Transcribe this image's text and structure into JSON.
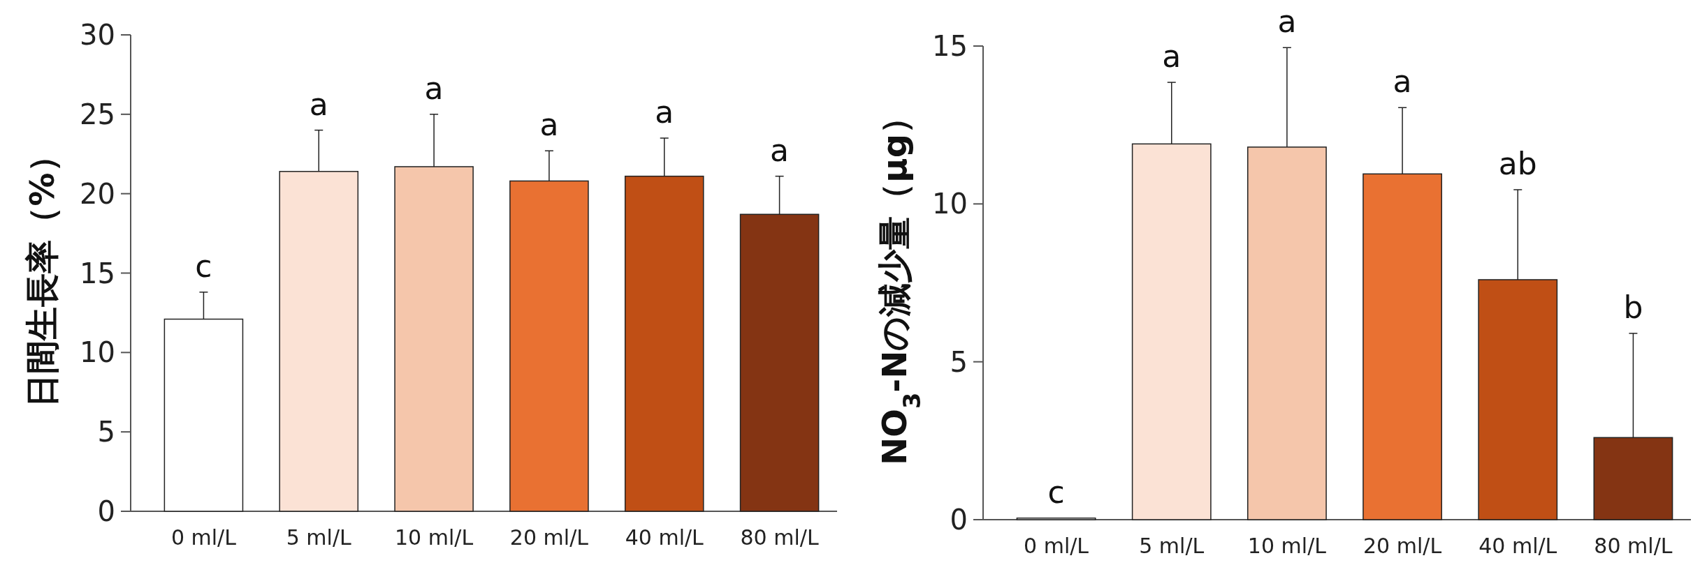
{
  "chart_data": [
    {
      "type": "bar",
      "ylabel": "日間生長率（%）",
      "categories": [
        "0 ml/L",
        "5 ml/L",
        "10 ml/L",
        "20 ml/L",
        "40 ml/L",
        "80 ml/L"
      ],
      "values": [
        12.1,
        21.4,
        21.7,
        20.8,
        21.1,
        18.7
      ],
      "errors": [
        [
          12.1,
          13.8
        ],
        [
          21.4,
          24.0
        ],
        [
          21.7,
          25.0
        ],
        [
          20.8,
          22.7
        ],
        [
          21.1,
          23.5
        ],
        [
          18.7,
          21.1
        ]
      ],
      "colors": [
        "#ffffff",
        "#fbe2d5",
        "#f5c6ab",
        "#e97132",
        "#c04f15",
        "#843413"
      ],
      "ylim": [
        0,
        30
      ],
      "yticks": [
        0,
        5,
        10,
        15,
        20,
        25,
        30
      ],
      "annotations": [
        {
          "text": "c",
          "x": "0 ml/L",
          "y": 13.8
        },
        {
          "text": "a",
          "x": "5 ml/L",
          "y": 24.0
        },
        {
          "text": "a",
          "x": "10 ml/L",
          "y": 25.0
        },
        {
          "text": "a",
          "x": "20 ml/L",
          "y": 22.7
        },
        {
          "text": "a",
          "x": "40 ml/L",
          "y": 23.5
        },
        {
          "text": "a",
          "x": "80 ml/L",
          "y": 21.1
        }
      ]
    },
    {
      "type": "bar",
      "ylabel": "NO$_{3}$-Nの減少量（μg）",
      "categories": [
        "0 ml/L",
        "5 ml/L",
        "10 ml/L",
        "20 ml/L",
        "40 ml/L",
        "80 ml/L"
      ],
      "values": [
        0.05,
        11.9,
        11.8,
        10.95,
        7.6,
        2.6
      ],
      "errors": [
        null,
        [
          11.9,
          13.85
        ],
        [
          11.8,
          14.95
        ],
        [
          10.95,
          13.05
        ],
        [
          7.6,
          10.45
        ],
        [
          2.6,
          5.9
        ]
      ],
      "colors": [
        "#ffffff",
        "#fbe2d5",
        "#f5c6ab",
        "#e97132",
        "#c04f15",
        "#843413"
      ],
      "ylim": [
        0,
        15
      ],
      "yticks": [
        0,
        5,
        10,
        15
      ],
      "annotations": [
        {
          "text": "c",
          "x": "0 ml/L",
          "y": 0.05
        },
        {
          "text": "a",
          "x": "5 ml/L",
          "y": 13.85
        },
        {
          "text": "a",
          "x": "10 ml/L",
          "y": 14.95
        },
        {
          "text": "a",
          "x": "20 ml/L",
          "y": 13.05
        },
        {
          "text": "ab",
          "x": "40 ml/L",
          "y": 10.45
        },
        {
          "text": "b",
          "x": "80 ml/L",
          "y": 5.9
        }
      ]
    }
  ]
}
